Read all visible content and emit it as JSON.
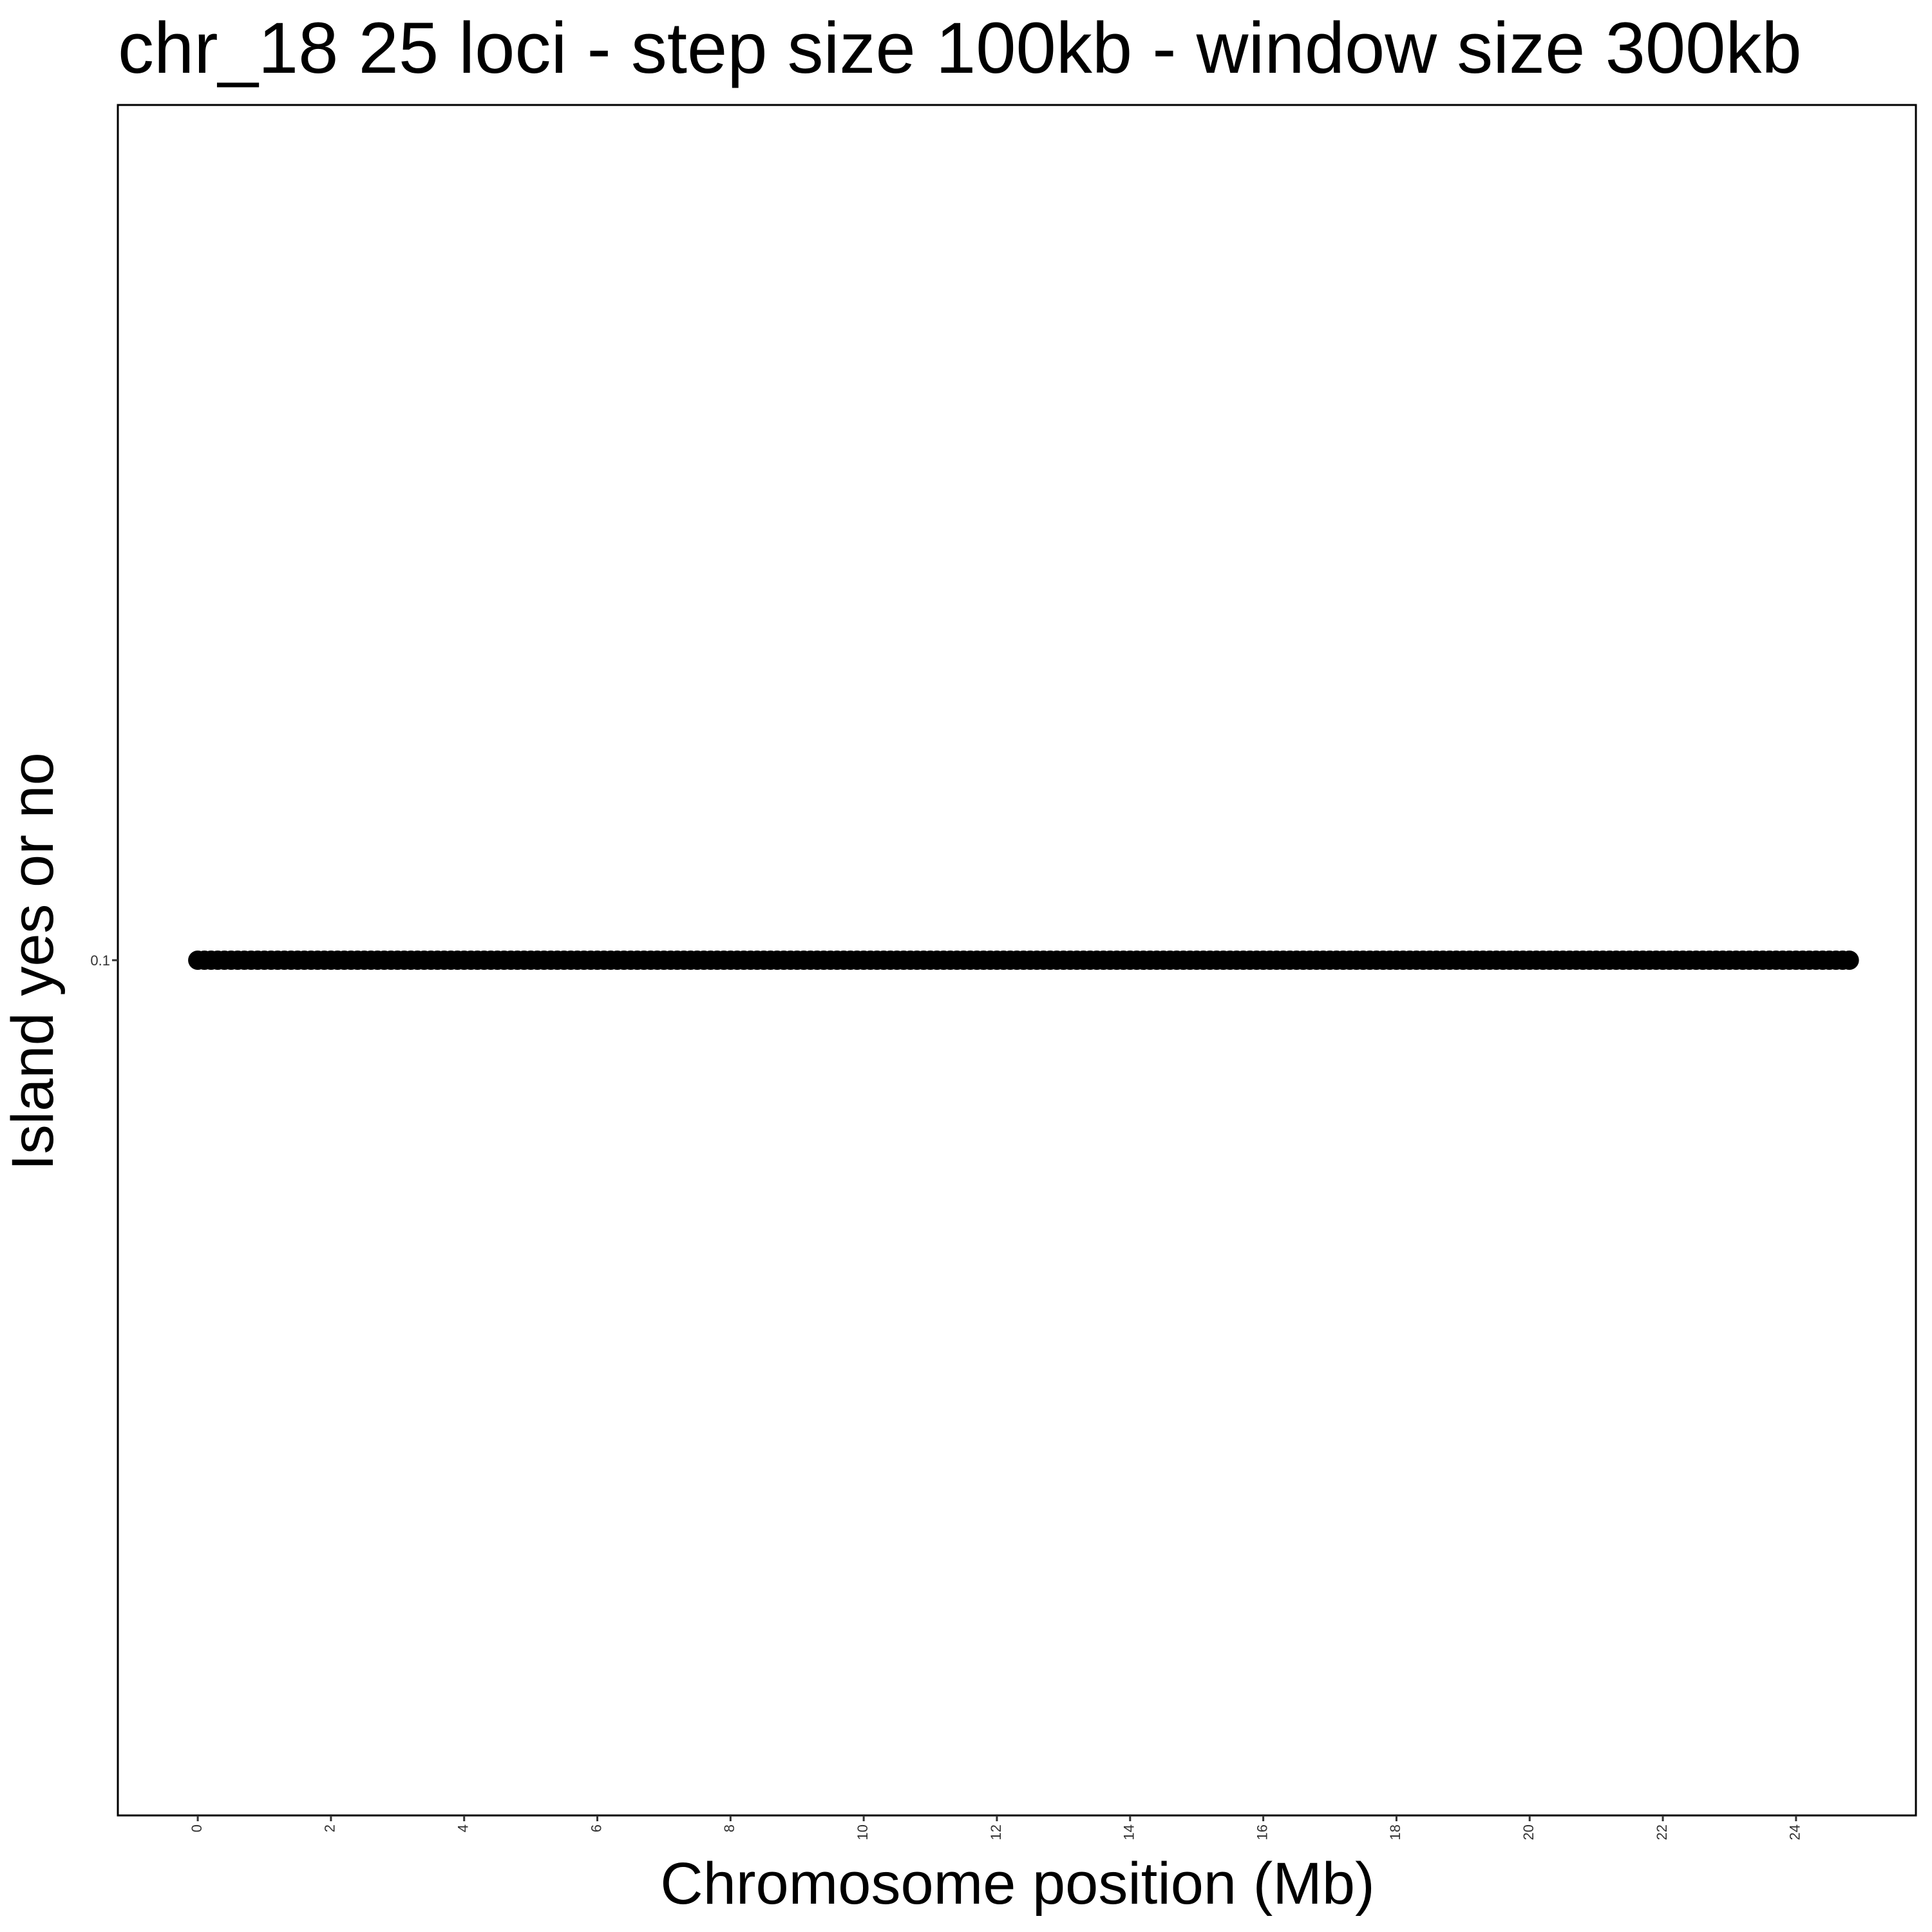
{
  "chart_data": {
    "type": "scatter",
    "title": "chr_18 25 loci - step size 100kb - window size 300kb",
    "xlabel": "Chromosome position (Mb)",
    "ylabel": "Island yes or no",
    "xlim": [
      -1.2,
      25.8
    ],
    "ylim": [
      0.0,
      0.2
    ],
    "x_ticks": [
      0,
      2,
      4,
      6,
      8,
      10,
      12,
      14,
      16,
      18,
      20,
      22,
      24
    ],
    "x_tick_labels": [
      "0",
      "2",
      "4",
      "6",
      "8",
      "10",
      "12",
      "14",
      "16",
      "18",
      "20",
      "22",
      "24"
    ],
    "y_ticks": [
      0.1
    ],
    "y_tick_labels": [
      "0.1"
    ],
    "grid": false,
    "legend": "none",
    "point_color": "#000000",
    "series": [
      {
        "x_start": 0.0,
        "x_end": 24.8,
        "x_step": 0.1,
        "y": 0.1
      }
    ]
  }
}
